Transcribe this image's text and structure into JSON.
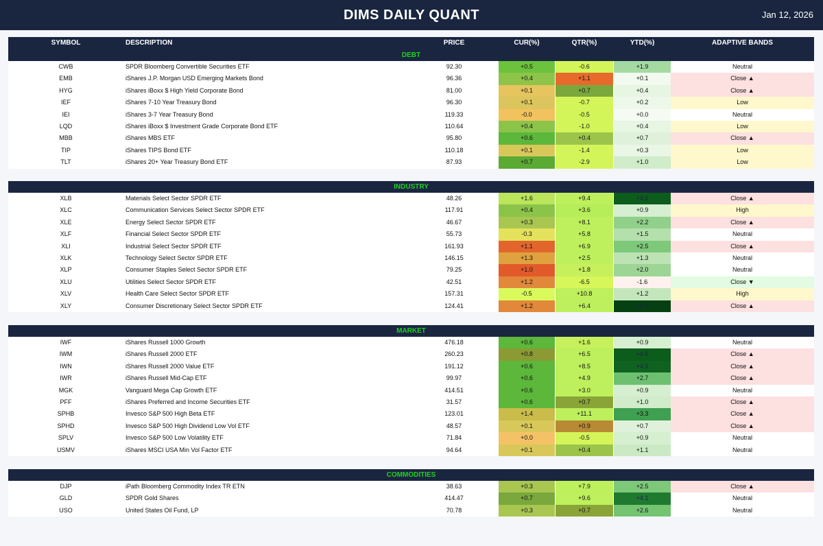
{
  "header": {
    "title": "DIMS DAILY QUANT",
    "date": "Jan 12, 2026"
  },
  "columns": {
    "symbol": "SYMBOL",
    "description": "DESCRIPTION",
    "price": "PRICE",
    "cur": "CUR(%)",
    "qtr": "QTR(%)",
    "ytd": "YTD(%)",
    "bands": "ADAPTIVE BANDS"
  },
  "colors": {
    "header_bg": "#1a2640",
    "section_title": "#22d022",
    "band_close_up": "#fde0e0",
    "band_low": "#fff8cc",
    "band_high": "#fff8cc",
    "band_close_down": "#e2fbe2",
    "band_neutral": "#ffffff"
  },
  "sections": [
    {
      "title": "DEBT",
      "rows": [
        {
          "sym": "CWB",
          "desc": "SPDR Bloomberg Convertible Securities ETF",
          "price": "92.30",
          "cur": "+0.5",
          "qtr": "-0.6",
          "ytd": "+1.9",
          "band": "Neutral",
          "cur_bg": "#6cc23c",
          "qtr_bg": "#d4f55a",
          "ytd_bg": "#a4daa2",
          "band_bg": "#ffffff"
        },
        {
          "sym": "EMB",
          "desc": "iShares J.P. Morgan USD Emerging Markets Bond",
          "price": "96.36",
          "cur": "+0.4",
          "qtr": "+1.1",
          "ytd": "+0.1",
          "band": "Close ▲",
          "cur_bg": "#8ec44a",
          "qtr_bg": "#e76a2c",
          "ytd_bg": "#f2f9ef",
          "band_bg": "#fde0e0"
        },
        {
          "sym": "HYG",
          "desc": "iShares iBoxx $ High Yield Corporate Bond",
          "price": "81.00",
          "cur": "+0.1",
          "qtr": "+0.7",
          "ytd": "+0.4",
          "band": "Close ▲",
          "cur_bg": "#e6c45e",
          "qtr_bg": "#7aa83c",
          "ytd_bg": "#e7f5e3",
          "band_bg": "#fde0e0"
        },
        {
          "sym": "IEF",
          "desc": "iShares 7-10 Year Treasury Bond",
          "price": "96.30",
          "cur": "+0.1",
          "qtr": "-0.7",
          "ytd": "+0.2",
          "band": "Low",
          "cur_bg": "#dcc55c",
          "qtr_bg": "#d4f55a",
          "ytd_bg": "#edf8ea",
          "band_bg": "#fff8cc"
        },
        {
          "sym": "IEI",
          "desc": "iShares 3-7 Year Treasury Bond",
          "price": "119.33",
          "cur": "-0.0",
          "qtr": "-0.5",
          "ytd": "+0.0",
          "band": "Neutral",
          "cur_bg": "#f2c25e",
          "qtr_bg": "#d4f55a",
          "ytd_bg": "#f5fbf3",
          "band_bg": "#ffffff"
        },
        {
          "sym": "LQD",
          "desc": "iShares iBoxx $ Investment Grade Corporate Bond ETF",
          "price": "110.64",
          "cur": "+0.4",
          "qtr": "-1.0",
          "ytd": "+0.4",
          "band": "Low",
          "cur_bg": "#8cc44a",
          "qtr_bg": "#d4f55a",
          "ytd_bg": "#e7f5e3",
          "band_bg": "#fff8cc"
        },
        {
          "sym": "MBB",
          "desc": "iShares MBS ETF",
          "price": "95.80",
          "cur": "+0.6",
          "qtr": "+0.4",
          "ytd": "+0.7",
          "band": "Close ▲",
          "cur_bg": "#5cb73a",
          "qtr_bg": "#9cc44a",
          "ytd_bg": "#dff1da",
          "band_bg": "#fde0e0"
        },
        {
          "sym": "TIP",
          "desc": "iShares TIPS Bond ETF",
          "price": "110.18",
          "cur": "+0.1",
          "qtr": "-1.4",
          "ytd": "+0.3",
          "band": "Low",
          "cur_bg": "#d8c85a",
          "qtr_bg": "#d4f55a",
          "ytd_bg": "#eaf6e6",
          "band_bg": "#fff8cc"
        },
        {
          "sym": "TLT",
          "desc": "iShares 20+ Year Treasury Bond ETF",
          "price": "87.93",
          "cur": "+0.7",
          "qtr": "-2.9",
          "ytd": "+1.0",
          "band": "Low",
          "cur_bg": "#5aaa34",
          "qtr_bg": "#d4f55a",
          "ytd_bg": "#d0eccb",
          "band_bg": "#fff8cc"
        }
      ]
    },
    {
      "title": "INDUSTRY",
      "rows": [
        {
          "sym": "XLB",
          "desc": "Materials Select Sector SPDR ETF",
          "price": "48.26",
          "cur": "+1.6",
          "qtr": "+9.4",
          "ytd": "+4.6",
          "band": "Close ▲",
          "cur_bg": "#bbe55a",
          "qtr_bg": "#bdf05c",
          "ytd_bg": "#0c5c1c",
          "band_bg": "#fde0e0"
        },
        {
          "sym": "XLC",
          "desc": "Communication Services Select Sector SPDR ETF",
          "price": "117.91",
          "cur": "+0.4",
          "qtr": "+3.6",
          "ytd": "+0.9",
          "band": "High",
          "cur_bg": "#8cc44a",
          "qtr_bg": "#b6ee5a",
          "ytd_bg": "#d6efd0",
          "band_bg": "#fff8cc"
        },
        {
          "sym": "XLE",
          "desc": "Energy Select Sector SPDR ETF",
          "price": "46.67",
          "cur": "+0.3",
          "qtr": "+8.1",
          "ytd": "+2.2",
          "band": "Close ▲",
          "cur_bg": "#a8c650",
          "qtr_bg": "#bdf05c",
          "ytd_bg": "#90d08a",
          "band_bg": "#fde0e0"
        },
        {
          "sym": "XLF",
          "desc": "Financial Select Sector SPDR ETF",
          "price": "55.73",
          "cur": "-0.3",
          "qtr": "+5.8",
          "ytd": "+1.5",
          "band": "Neutral",
          "cur_bg": "#e4e25c",
          "qtr_bg": "#bdf05c",
          "ytd_bg": "#b4e0ac",
          "band_bg": "#ffffff"
        },
        {
          "sym": "XLI",
          "desc": "Industrial Select Sector SPDR ETF",
          "price": "161.93",
          "cur": "+1.1",
          "qtr": "+6.9",
          "ytd": "+2.5",
          "band": "Close ▲",
          "cur_bg": "#e2662c",
          "qtr_bg": "#bdf05c",
          "ytd_bg": "#7ec87a",
          "band_bg": "#fde0e0"
        },
        {
          "sym": "XLK",
          "desc": "Technology Select Sector SPDR ETF",
          "price": "146.15",
          "cur": "+1.3",
          "qtr": "+2.5",
          "ytd": "+1.3",
          "band": "Neutral",
          "cur_bg": "#e0a23e",
          "qtr_bg": "#bdf05c",
          "ytd_bg": "#bde3b5",
          "band_bg": "#ffffff"
        },
        {
          "sym": "XLP",
          "desc": "Consumer Staples Select Sector SPDR ETF",
          "price": "79.25",
          "cur": "+1.0",
          "qtr": "+1.8",
          "ytd": "+2.0",
          "band": "Neutral",
          "cur_bg": "#e25a2a",
          "qtr_bg": "#c6f05c",
          "ytd_bg": "#9cd594",
          "band_bg": "#ffffff"
        },
        {
          "sym": "XLU",
          "desc": "Utilities Select Sector SPDR ETF",
          "price": "42.51",
          "cur": "+1.2",
          "qtr": "-6.5",
          "ytd": "-1.6",
          "band": "Close ▼",
          "cur_bg": "#e2883a",
          "qtr_bg": "#d6f65a",
          "ytd_bg": "#fff2ee",
          "band_bg": "#e2fbe2"
        },
        {
          "sym": "XLV",
          "desc": "Health Care Select Sector SPDR ETF",
          "price": "157.31",
          "cur": "-0.5",
          "qtr": "+10.8",
          "ytd": "+1.2",
          "band": "High",
          "cur_bg": "#dafa5c",
          "qtr_bg": "#bdf05c",
          "ytd_bg": "#c4e6bd",
          "band_bg": "#fff8cc"
        },
        {
          "sym": "XLY",
          "desc": "Consumer Discretionary Select Sector SPDR ETF",
          "price": "124.41",
          "cur": "+1.2",
          "qtr": "+6.4",
          "ytd": "+6.1",
          "band": "Close ▲",
          "cur_bg": "#e2883a",
          "qtr_bg": "#bdf05c",
          "ytd_bg": "#063f12",
          "band_bg": "#fde0e0"
        }
      ]
    },
    {
      "title": "MARKET",
      "rows": [
        {
          "sym": "IWF",
          "desc": "iShares Russell 1000 Growth",
          "price": "476.18",
          "cur": "+0.6",
          "qtr": "+1.6",
          "ytd": "+0.9",
          "band": "Neutral",
          "cur_bg": "#5cb73a",
          "qtr_bg": "#c6f05c",
          "ytd_bg": "#d6efd0",
          "band_bg": "#ffffff"
        },
        {
          "sym": "IWM",
          "desc": "iShares Russell 2000 ETF",
          "price": "260.23",
          "cur": "+0.8",
          "qtr": "+6.5",
          "ytd": "+4.6",
          "band": "Close ▲",
          "cur_bg": "#8c9a34",
          "qtr_bg": "#bdf05c",
          "ytd_bg": "#0c5c1c",
          "band_bg": "#fde0e0"
        },
        {
          "sym": "IWN",
          "desc": "iShares Russell 2000 Value ETF",
          "price": "191.12",
          "cur": "+0.6",
          "qtr": "+8.5",
          "ytd": "+4.5",
          "band": "Close ▲",
          "cur_bg": "#5cb73a",
          "qtr_bg": "#bdf05c",
          "ytd_bg": "#0f6220",
          "band_bg": "#fde0e0"
        },
        {
          "sym": "IWR",
          "desc": "iShares Russell Mid-Cap ETF",
          "price": "99.97",
          "cur": "+0.6",
          "qtr": "+4.9",
          "ytd": "+2.7",
          "band": "Close ▲",
          "cur_bg": "#5cb73a",
          "qtr_bg": "#bdf05c",
          "ytd_bg": "#6cc070",
          "band_bg": "#fde0e0"
        },
        {
          "sym": "MGK",
          "desc": "Vanguard Mega Cap Growth ETF",
          "price": "414.51",
          "cur": "+0.6",
          "qtr": "+3.0",
          "ytd": "+0.9",
          "band": "Neutral",
          "cur_bg": "#5cb73a",
          "qtr_bg": "#bdf05c",
          "ytd_bg": "#d6efd0",
          "band_bg": "#ffffff"
        },
        {
          "sym": "PFF",
          "desc": "iShares Preferred and Income Securities ETF",
          "price": "31.57",
          "cur": "+0.6",
          "qtr": "+0.7",
          "ytd": "+1.0",
          "band": "Close ▲",
          "cur_bg": "#5cb73a",
          "qtr_bg": "#8aa438",
          "ytd_bg": "#d0eccb",
          "band_bg": "#fde0e0"
        },
        {
          "sym": "SPHB",
          "desc": "Invesco S&P 500 High Beta ETF",
          "price": "123.01",
          "cur": "+1.4",
          "qtr": "+11.1",
          "ytd": "+3.3",
          "band": "Close ▲",
          "cur_bg": "#cabc4a",
          "qtr_bg": "#bdf05c",
          "ytd_bg": "#3ea050",
          "band_bg": "#fde0e0"
        },
        {
          "sym": "SPHD",
          "desc": "Invesco S&P 500 High Dividend Low Vol ETF",
          "price": "48.57",
          "cur": "+0.1",
          "qtr": "+0.9",
          "ytd": "+0.7",
          "band": "Close ▲",
          "cur_bg": "#d8c85a",
          "qtr_bg": "#b88a34",
          "ytd_bg": "#dff1da",
          "band_bg": "#fde0e0"
        },
        {
          "sym": "SPLV",
          "desc": "Invesco S&P 500 Low Volatility ETF",
          "price": "71.84",
          "cur": "+0.0",
          "qtr": "-0.5",
          "ytd": "+0.9",
          "band": "Neutral",
          "cur_bg": "#f4c266",
          "qtr_bg": "#d4f55a",
          "ytd_bg": "#d6efd0",
          "band_bg": "#ffffff"
        },
        {
          "sym": "USMV",
          "desc": "iShares MSCI USA Min Vol Factor ETF",
          "price": "94.64",
          "cur": "+0.1",
          "qtr": "+0.4",
          "ytd": "+1.1",
          "band": "Neutral",
          "cur_bg": "#d8c85a",
          "qtr_bg": "#9cc44a",
          "ytd_bg": "#cae9c4",
          "band_bg": "#ffffff"
        }
      ]
    },
    {
      "title": "COMMODITIES",
      "rows": [
        {
          "sym": "DJP",
          "desc": "iPath Bloomberg Commodity Index TR ETN",
          "price": "38.63",
          "cur": "+0.3",
          "qtr": "+7.9",
          "ytd": "+2.5",
          "band": "Close ▲",
          "cur_bg": "#a8c650",
          "qtr_bg": "#bdf05c",
          "ytd_bg": "#7ec87a",
          "band_bg": "#fde0e0"
        },
        {
          "sym": "GLD",
          "desc": "SPDR Gold Shares",
          "price": "414.47",
          "cur": "+0.7",
          "qtr": "+9.6",
          "ytd": "+4.1",
          "band": "Neutral",
          "cur_bg": "#7aa83c",
          "qtr_bg": "#bdf05c",
          "ytd_bg": "#1f7a30",
          "band_bg": "#ffffff"
        },
        {
          "sym": "USO",
          "desc": "United States Oil Fund, LP",
          "price": "70.78",
          "cur": "+0.3",
          "qtr": "+0.7",
          "ytd": "+2.6",
          "band": "Neutral",
          "cur_bg": "#a8c650",
          "qtr_bg": "#8aa438",
          "ytd_bg": "#74c472",
          "band_bg": "#ffffff"
        }
      ]
    }
  ]
}
